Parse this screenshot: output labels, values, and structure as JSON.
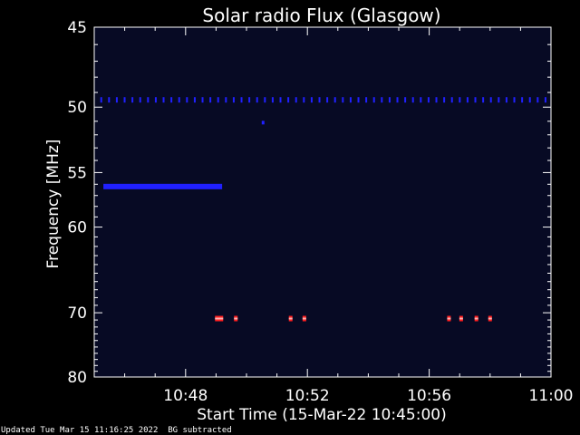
{
  "chart_data": {
    "type": "heatmap",
    "title": "Solar radio Flux (Glasgow)",
    "xlabel": "Start Time (15-Mar-22 10:45:00)",
    "ylabel": "Frequency [MHz]",
    "x_ticks": [
      "10:48",
      "10:52",
      "10:56",
      "11:00"
    ],
    "x_tick_minutes": [
      3,
      7,
      11,
      15
    ],
    "xlim_minutes_after_start": [
      0,
      15
    ],
    "y_ticks": [
      45,
      50,
      55,
      60,
      70,
      80
    ],
    "ylim_mhz": [
      45,
      80
    ],
    "y_scale": "reciprocal",
    "grid": false,
    "background_color": "#000000",
    "colors": {
      "text": "#ffffff",
      "plot_background": "#070a24",
      "low_signal": "#2020ff",
      "high_signal": "#ff2020",
      "high_core": "#ffb0b0"
    },
    "features": [
      {
        "description_label": "persistent emission",
        "freq_mhz": 49.5,
        "t_start_min": 0.2,
        "t_end_min": 14.9,
        "intensity": "low",
        "pattern": "dotted"
      },
      {
        "description_label": "broadband line",
        "freq_mhz": 56.2,
        "t_start_min": 0.3,
        "t_end_min": 4.2,
        "intensity": "low",
        "pattern": "solid"
      },
      {
        "description_label": "isolated point",
        "freq_mhz": 51.1,
        "t_start_min": 5.5,
        "t_end_min": 5.6,
        "intensity": "low",
        "pattern": "point"
      },
      {
        "description_label": "interference bursts",
        "freq_mhz": 70.8,
        "times_min": [
          4.1,
          4.65,
          6.45,
          6.9,
          11.65,
          12.05,
          12.55,
          13.0
        ],
        "intensity": "high",
        "pattern": "segments"
      }
    ]
  },
  "footer": {
    "updated": "Updated Tue Mar 15 11:16:25 2022",
    "note": "BG subtracted"
  }
}
